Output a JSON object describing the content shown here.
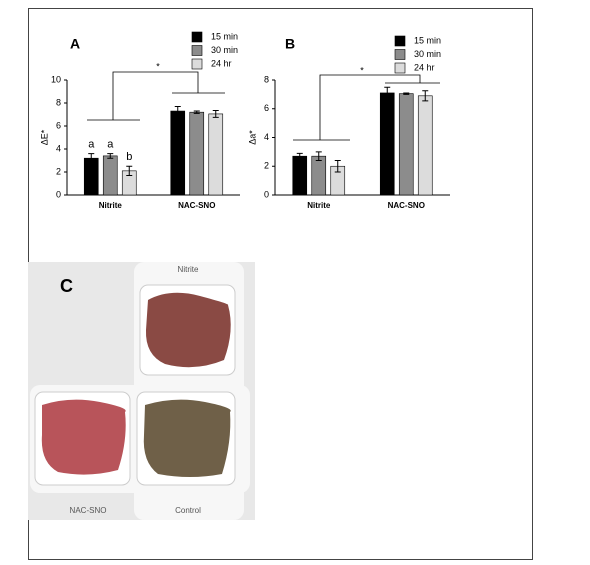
{
  "chart_data": [
    {
      "type": "bar",
      "panel_label": "A",
      "ylabel": "ΔE*",
      "categories": [
        "Nitrite",
        "NAC-SNO"
      ],
      "series": [
        {
          "name": "15 min",
          "color": "#000000",
          "values": [
            3.2,
            7.3
          ],
          "errors": [
            0.4,
            0.4
          ]
        },
        {
          "name": "30 min",
          "color": "#8c8c8c",
          "values": [
            3.4,
            7.2
          ],
          "errors": [
            0.2,
            0.1
          ]
        },
        {
          "name": "24 hr",
          "color": "#dcdcdc",
          "values": [
            2.1,
            7.05
          ],
          "errors": [
            0.4,
            0.3
          ]
        }
      ],
      "annotations": [
        "a",
        "a",
        "b"
      ],
      "significance": "*",
      "ylim": [
        0,
        10
      ],
      "yticks": [
        0,
        2,
        4,
        6,
        8,
        10
      ]
    },
    {
      "type": "bar",
      "panel_label": "B",
      "ylabel": "Δa*",
      "categories": [
        "Nitrite",
        "NAC-SNO"
      ],
      "series": [
        {
          "name": "15 min",
          "color": "#000000",
          "values": [
            2.7,
            7.1
          ],
          "errors": [
            0.2,
            0.4
          ]
        },
        {
          "name": "30 min",
          "color": "#8c8c8c",
          "values": [
            2.7,
            7.05
          ],
          "errors": [
            0.3,
            0.05
          ]
        },
        {
          "name": "24 hr",
          "color": "#dcdcdc",
          "values": [
            2.0,
            6.9
          ],
          "errors": [
            0.4,
            0.35
          ]
        }
      ],
      "significance": "*",
      "ylim": [
        0,
        8
      ],
      "yticks": [
        0,
        2,
        4,
        6,
        8
      ]
    }
  ],
  "photo": {
    "panel_label": "C",
    "labels": [
      "Nitrite",
      "NAC-SNO",
      "Control"
    ]
  }
}
